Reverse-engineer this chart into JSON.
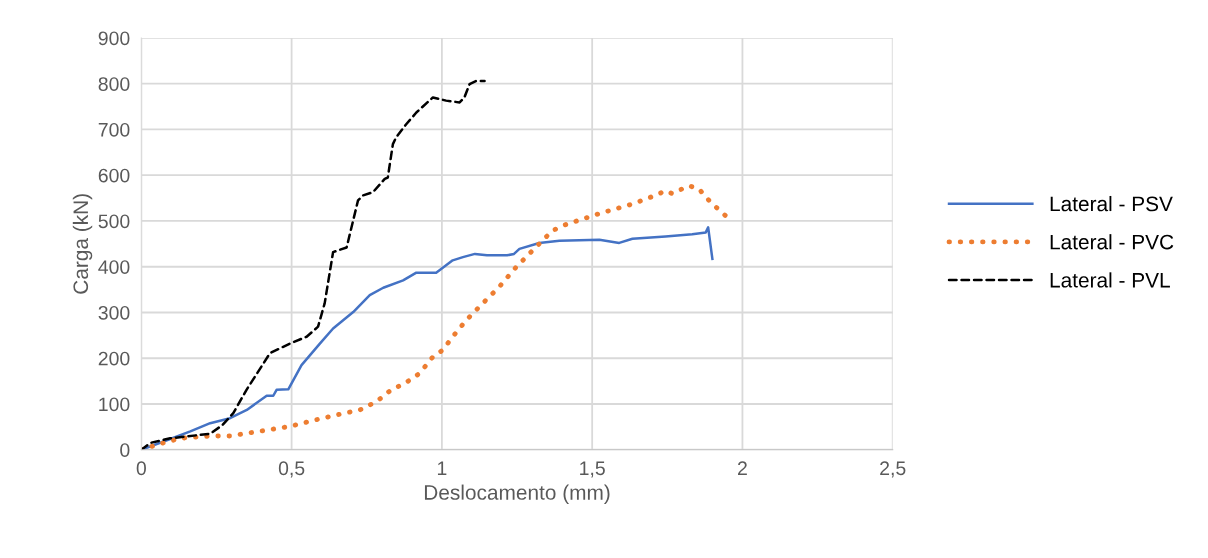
{
  "chart_data": {
    "type": "line",
    "xlabel": "Deslocamento (mm)",
    "ylabel": "Carga (kN)",
    "xlim": [
      0,
      2.5
    ],
    "xticks": [
      0,
      {
        "value": 0.5,
        "label": "0,5"
      },
      1,
      {
        "value": 1.5,
        "label": "1,5"
      },
      2,
      {
        "value": 2.5,
        "label": "2,5"
      }
    ],
    "ylim": [
      0,
      900
    ],
    "yticks": [
      0,
      100,
      200,
      300,
      400,
      500,
      600,
      700,
      800,
      900
    ],
    "grid": true,
    "legend": "right",
    "marker": "none",
    "series": [
      {
        "name": "Lateral - PSV",
        "color": "#4472c4",
        "line_style": "solid",
        "x": [
          0,
          0.074,
          0.163,
          0.229,
          0.295,
          0.351,
          0.417,
          0.439,
          0.45,
          0.489,
          0.533,
          0.594,
          0.638,
          0.705,
          0.76,
          0.805,
          0.871,
          0.915,
          0.981,
          1.036,
          1.07,
          1.11,
          1.15,
          1.217,
          1.24,
          1.258,
          1.324,
          1.391,
          1.524,
          1.59,
          1.634,
          1.744,
          1.833,
          1.878,
          1.886,
          1.9
        ],
        "values": [
          0,
          18,
          40,
          58,
          69,
          87,
          118,
          118,
          131,
          132,
          185,
          232,
          265,
          301,
          338,
          354,
          370,
          387,
          387,
          414,
          421,
          428,
          425,
          425,
          428,
          439,
          452,
          457,
          459,
          452,
          461,
          466,
          471,
          475,
          486,
          417
        ]
      },
      {
        "name": "Lateral - PVC",
        "color": "#ed7d31",
        "line_style": "dotted",
        "x": [
          0,
          0.052,
          0.129,
          0.229,
          0.295,
          0.428,
          0.494,
          0.572,
          0.649,
          0.727,
          0.782,
          0.837,
          0.87,
          0.926,
          0.97,
          1.003,
          1.036,
          1.081,
          1.136,
          1.191,
          1.247,
          1.313,
          1.368,
          1.412,
          1.523,
          1.634,
          1.711,
          1.744,
          1.766,
          1.822,
          1.855,
          1.894,
          1.943
        ],
        "values": [
          0,
          11,
          25,
          30,
          30,
          44,
          51,
          64,
          76,
          87,
          105,
          134,
          142,
          167,
          203,
          218,
          247,
          283,
          320,
          356,
          399,
          443,
          479,
          492,
          516,
          537,
          556,
          566,
          560,
          577,
          570,
          541,
          512
        ]
      },
      {
        "name": "Lateral - PVL",
        "color": "#000000",
        "line_style": "dashed",
        "x": [
          0,
          0.03,
          0.096,
          0.229,
          0.27,
          0.306,
          0.35,
          0.428,
          0.494,
          0.55,
          0.588,
          0.61,
          0.638,
          0.683,
          0.721,
          0.738,
          0.771,
          0.81,
          0.82,
          0.837,
          0.848,
          0.882,
          0.915,
          0.97,
          1.014,
          1.059,
          1.075,
          1.092,
          1.114,
          1.142
        ],
        "values": [
          0,
          15,
          25,
          35,
          54,
          80,
          131,
          211,
          232,
          247,
          269,
          320,
          432,
          442,
          545,
          556,
          563,
          592,
          595,
          668,
          683,
          712,
          737,
          770,
          763,
          759,
          770,
          799,
          806,
          806
        ]
      }
    ]
  }
}
